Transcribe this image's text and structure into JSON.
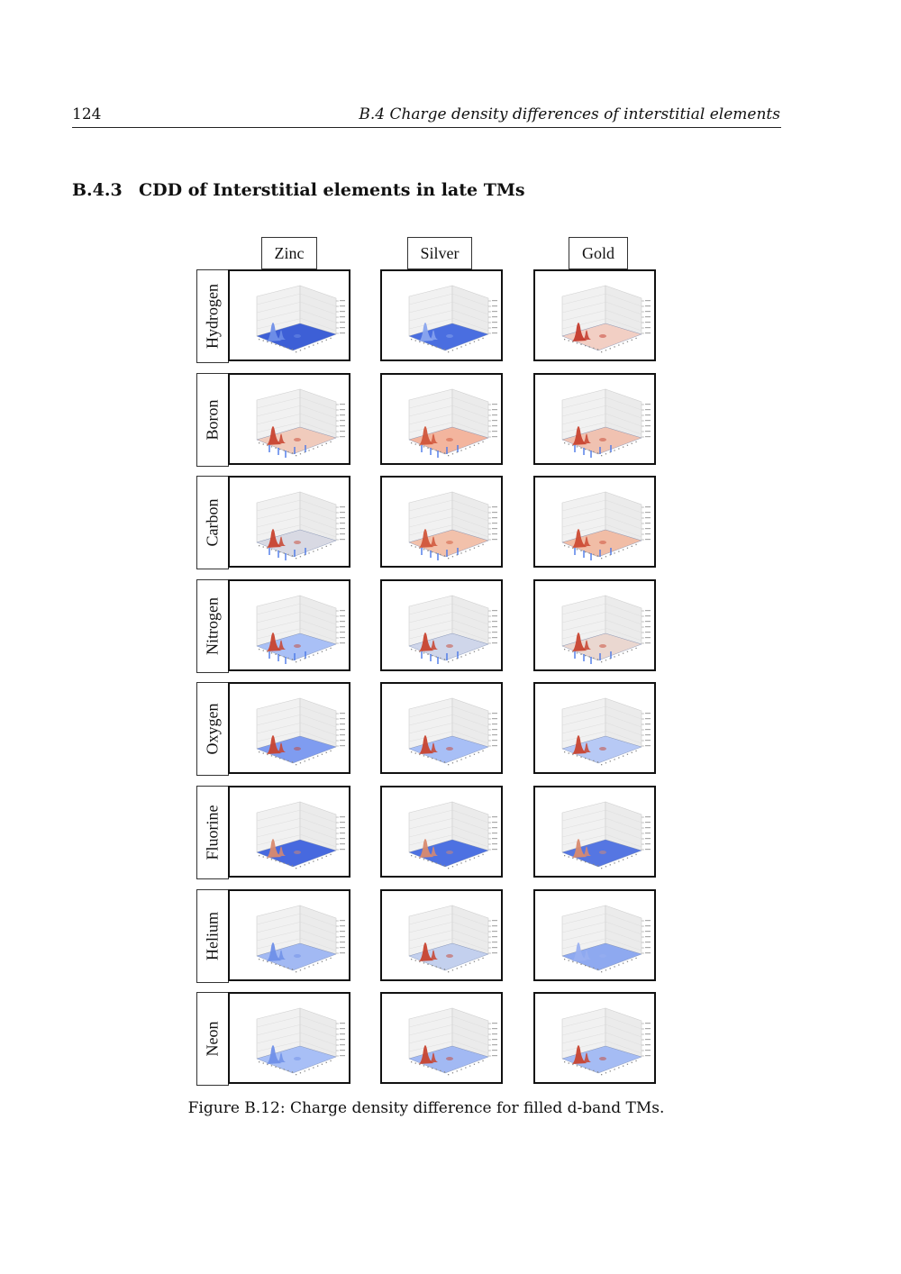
{
  "header": {
    "page_number": "124",
    "running_title": "B.4 Charge density differences of interstitial elements"
  },
  "section": {
    "number": "B.4.3",
    "title": "CDD of Interstitial elements in late TMs"
  },
  "figure": {
    "columns": [
      "Zinc",
      "Silver",
      "Gold"
    ],
    "rows": [
      "Hydrogen",
      "Boron",
      "Carbon",
      "Nitrogen",
      "Oxygen",
      "Fluorine",
      "Helium",
      "Neon"
    ],
    "caption": "Figure B.12: Charge density difference for filled d-band TMs.",
    "panels": [
      [
        {
          "surface": "#3d5fd6",
          "peak": "#6f8fe8",
          "spikes": false
        },
        {
          "surface": "#4a6ee0",
          "peak": "#8aa5ee",
          "spikes": false
        },
        {
          "surface": "#f2cfc4",
          "peak": "#c43a2c",
          "spikes": false
        }
      ],
      [
        {
          "surface": "#f0cbbc",
          "peak": "#c8432f",
          "spikes": true
        },
        {
          "surface": "#f3b59e",
          "peak": "#d0553a",
          "spikes": true
        },
        {
          "surface": "#f0c2b1",
          "peak": "#c8432f",
          "spikes": true
        }
      ],
      [
        {
          "surface": "#d8d9e3",
          "peak": "#c8432f",
          "spikes": true
        },
        {
          "surface": "#f2c1ab",
          "peak": "#d0553a",
          "spikes": true
        },
        {
          "surface": "#f1bda6",
          "peak": "#cc4a33",
          "spikes": true
        }
      ],
      [
        {
          "surface": "#a9c0f6",
          "peak": "#c8432f",
          "spikes": true
        },
        {
          "surface": "#cfd6ea",
          "peak": "#c8432f",
          "spikes": true
        },
        {
          "surface": "#ead7d0",
          "peak": "#c8432f",
          "spikes": true
        }
      ],
      [
        {
          "surface": "#7f9cf0",
          "peak": "#c8432f",
          "spikes": false
        },
        {
          "surface": "#a8bff6",
          "peak": "#c8432f",
          "spikes": false
        },
        {
          "surface": "#b7c9f5",
          "peak": "#c8432f",
          "spikes": false
        }
      ],
      [
        {
          "surface": "#4769df",
          "peak": "#d98a6e",
          "spikes": false
        },
        {
          "surface": "#4d71e2",
          "peak": "#d98a6e",
          "spikes": false
        },
        {
          "surface": "#5576e2",
          "peak": "#d98a6e",
          "spikes": false
        }
      ],
      [
        {
          "surface": "#a2b9f3",
          "peak": "#6f8fe8",
          "spikes": false
        },
        {
          "surface": "#c3d0ee",
          "peak": "#c8432f",
          "spikes": false
        },
        {
          "surface": "#8ea9f0",
          "peak": "#9ab0f0",
          "spikes": false
        }
      ],
      [
        {
          "surface": "#a8bff6",
          "peak": "#6f8fe8",
          "spikes": false
        },
        {
          "surface": "#a2b9f3",
          "peak": "#c8432f",
          "spikes": false
        },
        {
          "surface": "#a5bcf4",
          "peak": "#c8432f",
          "spikes": false
        }
      ]
    ]
  }
}
